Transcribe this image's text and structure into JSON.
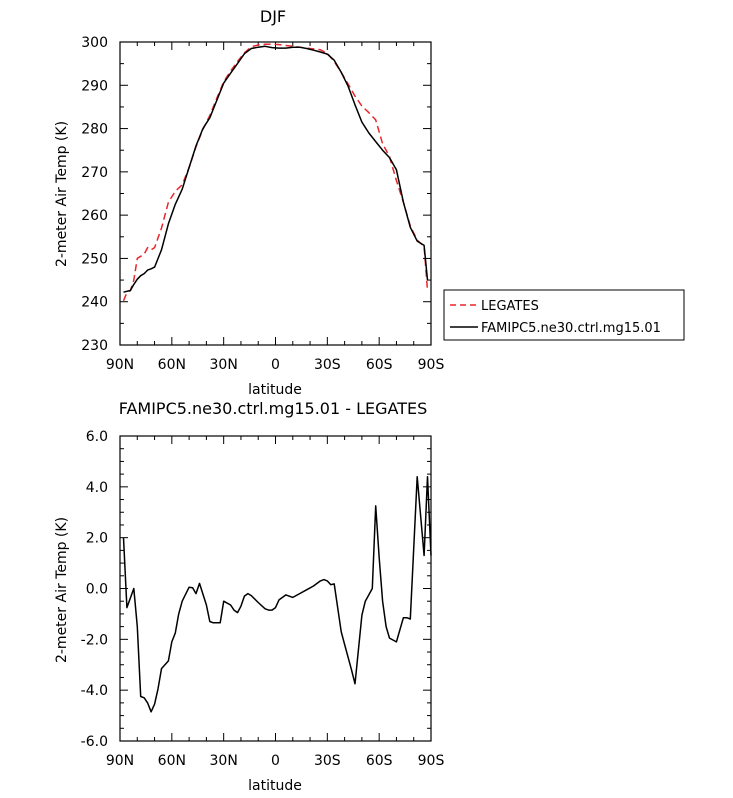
{
  "chart_data": [
    {
      "type": "line",
      "title": "DJF",
      "xlabel": "latitude",
      "ylabel": "2-meter Air Temp (K)",
      "xlim": [
        90,
        -90
      ],
      "ylim": [
        230,
        300
      ],
      "x_ticks": [
        {
          "value": 90,
          "label": "90N"
        },
        {
          "value": 60,
          "label": "60N"
        },
        {
          "value": 30,
          "label": "30N"
        },
        {
          "value": 0,
          "label": "0"
        },
        {
          "value": -30,
          "label": "30S"
        },
        {
          "value": -60,
          "label": "60S"
        },
        {
          "value": -90,
          "label": "90S"
        }
      ],
      "y_ticks": [
        {
          "value": 230,
          "label": "230"
        },
        {
          "value": 240,
          "label": "240"
        },
        {
          "value": 250,
          "label": "250"
        },
        {
          "value": 260,
          "label": "260"
        },
        {
          "value": 270,
          "label": "270"
        },
        {
          "value": 280,
          "label": "280"
        },
        {
          "value": 290,
          "label": "290"
        },
        {
          "value": 300,
          "label": "300"
        }
      ],
      "legend": {
        "position": "right",
        "entries": [
          "LEGATES",
          "FAMIPC5.ne30.ctrl.mg15.01"
        ]
      },
      "series": [
        {
          "name": "LEGATES",
          "color": "#e8262b",
          "dash": "dashed",
          "x": [
            88,
            86,
            84,
            82,
            80,
            78,
            76,
            74,
            72,
            70,
            66,
            62,
            58,
            54,
            50,
            46,
            42,
            38,
            34,
            30,
            26,
            22,
            18,
            14,
            10,
            6,
            2,
            -2,
            -6,
            -10,
            -14,
            -18,
            -22,
            -26,
            -30,
            -34,
            -38,
            -42,
            -46,
            -50,
            -54,
            -58,
            -62,
            -66,
            -70,
            -74,
            -78,
            -82,
            -86,
            -88
          ],
          "y": [
            240.2,
            242.1,
            242.6,
            245,
            250,
            250.5,
            251,
            252.5,
            252,
            252.5,
            257,
            263,
            265.5,
            267,
            271,
            275.8,
            279.8,
            283,
            287,
            290.8,
            293.3,
            295.5,
            297.5,
            298.9,
            299.3,
            299.5,
            299.5,
            299.4,
            299.2,
            299,
            298.8,
            298.6,
            298.4,
            298.2,
            297.4,
            295.5,
            293,
            290.3,
            287.5,
            285.2,
            283.7,
            282,
            276.5,
            273.5,
            268,
            263,
            257.5,
            254.2,
            252.8,
            242.5
          ]
        },
        {
          "name": "FAMIPC5.ne30.ctrl.mg15.01",
          "color": "#000000",
          "dash": "solid",
          "x": [
            88,
            86,
            84,
            82,
            80,
            78,
            76,
            74,
            72,
            70,
            66,
            62,
            58,
            54,
            50,
            46,
            42,
            38,
            34,
            30,
            26,
            22,
            18,
            14,
            10,
            6,
            2,
            -2,
            -6,
            -10,
            -14,
            -18,
            -22,
            -26,
            -30,
            -34,
            -38,
            -42,
            -46,
            -50,
            -54,
            -58,
            -62,
            -66,
            -70,
            -74,
            -78,
            -82,
            -86,
            -88
          ],
          "y": [
            242.2,
            242.4,
            242.6,
            244,
            245.2,
            246,
            246.5,
            247.3,
            247.6,
            248,
            252,
            258,
            262.5,
            266,
            271,
            276,
            280,
            282.5,
            286.5,
            290.5,
            292.8,
            295,
            297.3,
            298.5,
            298.8,
            299,
            298.7,
            298.6,
            298.6,
            298.8,
            298.8,
            298.5,
            298.1,
            297.7,
            297.2,
            295.8,
            293,
            289.8,
            285.5,
            281.5,
            279,
            277,
            275,
            273.3,
            270.5,
            263,
            257.2,
            254,
            253,
            245
          ]
        }
      ]
    },
    {
      "type": "line",
      "title": "FAMIPC5.ne30.ctrl.mg15.01 - LEGATES",
      "xlabel": "latitude",
      "ylabel": "2-meter Air Temp (K)",
      "xlim": [
        90,
        -90
      ],
      "ylim": [
        -6,
        6
      ],
      "x_ticks": [
        {
          "value": 90,
          "label": "90N"
        },
        {
          "value": 60,
          "label": "60N"
        },
        {
          "value": 30,
          "label": "30N"
        },
        {
          "value": 0,
          "label": "0"
        },
        {
          "value": -30,
          "label": "30S"
        },
        {
          "value": -60,
          "label": "60S"
        },
        {
          "value": -90,
          "label": "90S"
        }
      ],
      "y_ticks": [
        {
          "value": -6,
          "label": "-6.0"
        },
        {
          "value": -4,
          "label": "-4.0"
        },
        {
          "value": -2,
          "label": "-2.0"
        },
        {
          "value": 0,
          "label": "0.0"
        },
        {
          "value": 2,
          "label": "2.0"
        },
        {
          "value": 4,
          "label": "4.0"
        },
        {
          "value": 6,
          "label": "6.0"
        }
      ],
      "series": [
        {
          "color": "#000000",
          "dash": "solid",
          "x": [
            88,
            86,
            82,
            80,
            78,
            76,
            74,
            72,
            70,
            68,
            66,
            62,
            60,
            58,
            56,
            54,
            50,
            48,
            46,
            44,
            40,
            38,
            36,
            32,
            30,
            26,
            24,
            22,
            20,
            18,
            16,
            14,
            10,
            6,
            4,
            2,
            0,
            -2,
            -6,
            -10,
            -14,
            -18,
            -22,
            -26,
            -28,
            -30,
            -32,
            -34,
            -38,
            -40,
            -44,
            -46,
            -50,
            -52,
            -54,
            -56,
            -58,
            -60,
            -62,
            -64,
            -66,
            -70,
            -74,
            -76,
            -78,
            -82,
            -86,
            -88,
            -90
          ],
          "y": [
            2,
            -0.75,
            0,
            -1.5,
            -4.25,
            -4.3,
            -4.5,
            -4.85,
            -4.55,
            -3.95,
            -3.15,
            -2.85,
            -2.1,
            -1.75,
            -1.0,
            -0.5,
            0.05,
            0.03,
            -0.2,
            0.2,
            -0.65,
            -1.3,
            -1.35,
            -1.35,
            -0.5,
            -0.65,
            -0.85,
            -0.95,
            -0.7,
            -0.3,
            -0.2,
            -0.28,
            -0.55,
            -0.8,
            -0.85,
            -0.85,
            -0.75,
            -0.45,
            -0.25,
            -0.35,
            -0.2,
            -0.05,
            0.1,
            0.3,
            0.35,
            0.3,
            0.15,
            0.18,
            -1.7,
            -2.2,
            -3.2,
            -3.75,
            -1.05,
            -0.5,
            -0.25,
            0,
            3.25,
            1.2,
            -0.5,
            -1.5,
            -1.95,
            -2.1,
            -1.15,
            -1.15,
            -1.2,
            4.4,
            1.3,
            4.4,
            1.3
          ]
        }
      ]
    }
  ]
}
